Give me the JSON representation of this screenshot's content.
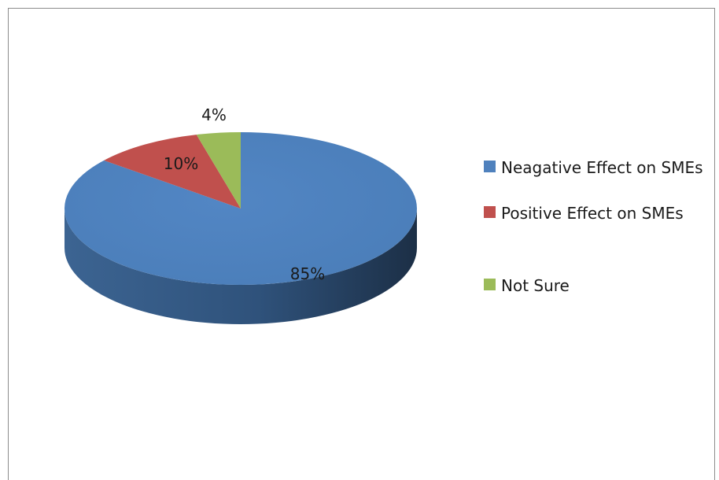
{
  "chart_data": {
    "type": "pie",
    "title": "",
    "categories": [
      "Neagative Effect on SMEs",
      "Positive Effect on SMEs",
      "Not Sure"
    ],
    "values": [
      85,
      10,
      4
    ],
    "data_labels": [
      "85%",
      "10%",
      "4%"
    ],
    "colors": [
      "#4f81bd",
      "#c0504d",
      "#9bbb59"
    ],
    "style": "3d-pie",
    "legend_position": "right"
  }
}
